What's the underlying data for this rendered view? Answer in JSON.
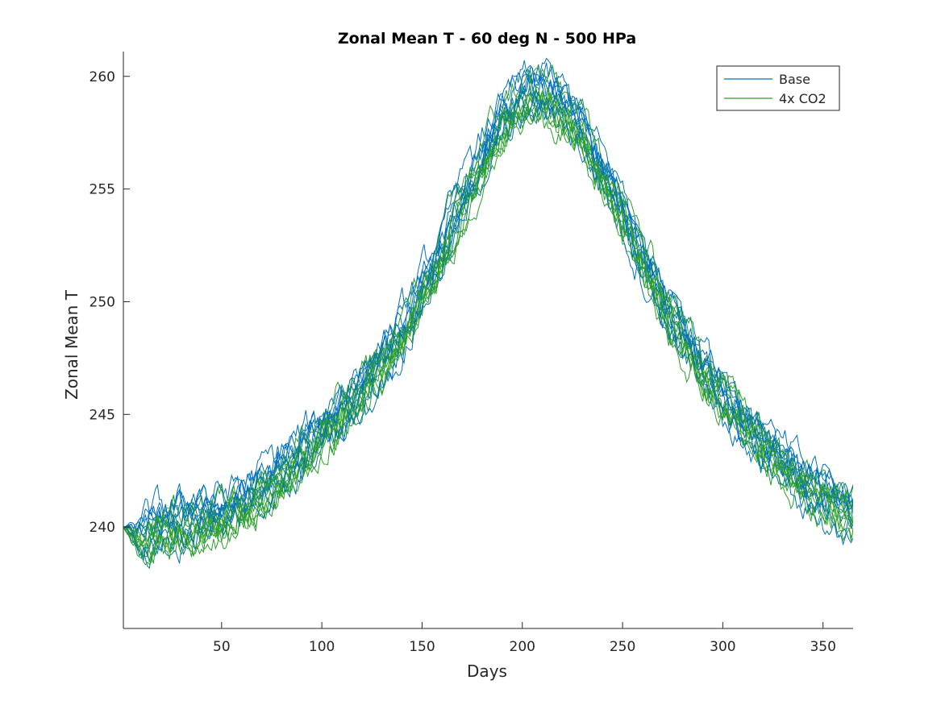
{
  "chart_data": {
    "type": "line",
    "title": "Zonal Mean T - 60 deg N - 500 HPa",
    "xlabel": "Days",
    "ylabel": "Zonal Mean T",
    "xlim": [
      1,
      365
    ],
    "ylim": [
      235.5,
      261.1
    ],
    "xticks": [
      50,
      100,
      150,
      200,
      250,
      300,
      350
    ],
    "yticks": [
      240,
      245,
      250,
      255,
      260
    ],
    "grid": false,
    "legend_position": "top-right",
    "series_groups": [
      {
        "name": "Base",
        "color": "#0072BD",
        "member_count": 10,
        "noise_spread": 1.0,
        "approx_mean": {
          "x": [
            1,
            10,
            20,
            30,
            40,
            50,
            60,
            70,
            80,
            90,
            100,
            110,
            120,
            130,
            140,
            150,
            160,
            170,
            180,
            190,
            200,
            210,
            220,
            230,
            240,
            250,
            260,
            270,
            280,
            290,
            300,
            310,
            320,
            330,
            340,
            350,
            360,
            365
          ],
          "y": [
            240.0,
            239.6,
            240.0,
            240.2,
            240.4,
            240.7,
            241.2,
            241.8,
            242.5,
            243.3,
            244.1,
            245.0,
            246.0,
            247.2,
            248.7,
            250.4,
            252.3,
            254.3,
            256.3,
            258.0,
            259.0,
            259.2,
            258.6,
            257.3,
            255.7,
            253.8,
            251.8,
            250.0,
            248.4,
            247.0,
            245.7,
            244.6,
            243.6,
            242.7,
            241.9,
            241.2,
            240.7,
            240.5
          ]
        }
      },
      {
        "name": "4x CO2",
        "color": "#2CA02C",
        "member_count": 10,
        "noise_spread": 1.0,
        "approx_mean": {
          "x": [
            1,
            10,
            20,
            30,
            40,
            50,
            60,
            70,
            80,
            90,
            100,
            110,
            120,
            130,
            140,
            150,
            160,
            170,
            180,
            190,
            200,
            210,
            220,
            230,
            240,
            250,
            260,
            270,
            280,
            290,
            300,
            310,
            320,
            330,
            340,
            350,
            360,
            365
          ],
          "y": [
            240.0,
            239.5,
            239.9,
            240.1,
            240.3,
            240.6,
            241.1,
            241.7,
            242.4,
            243.2,
            244.1,
            245.0,
            246.0,
            247.2,
            248.6,
            250.3,
            252.3,
            254.3,
            256.3,
            258.1,
            259.1,
            259.3,
            258.7,
            257.4,
            255.8,
            254.0,
            252.0,
            250.2,
            248.6,
            247.2,
            245.9,
            244.8,
            243.8,
            242.9,
            242.1,
            241.5,
            241.0,
            240.8
          ]
        }
      }
    ]
  }
}
